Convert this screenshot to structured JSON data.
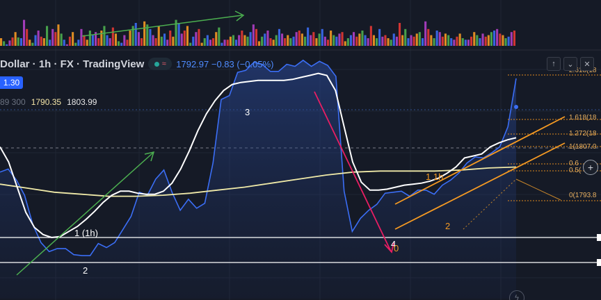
{
  "header": {
    "symbol_label": "Dollar · 1h · FX  · TradingView",
    "price_readout": "1792.97  −0.83 (−0.05%)",
    "last_price_tag": "1.30",
    "ohlc": {
      "prev": "89 300",
      "low": "1790.35",
      "high": "1803.99"
    },
    "toolbar": {
      "up_icon": "arrow-up-icon",
      "collapse_icon": "chevron-down-icon",
      "close_icon": "close-icon"
    },
    "status_icons": [
      "live-dot-icon",
      "wave-icon"
    ]
  },
  "fib_labels": [
    "2.618(18",
    "1.618(18",
    "1.272(18",
    "1(1807.0",
    "0.6",
    "0.5(",
    "0(1793.8"
  ],
  "wave_labels": {
    "w1": "1 (1h)",
    "w2": "2",
    "w3": "3",
    "w4": "4",
    "w0": "0",
    "w11": "1 1h",
    "w2b": "2"
  },
  "zoom_icon": "zoom-in-icon",
  "bottom_icon": "flash-icon",
  "colors": {
    "background": "#151a26",
    "price_line": "#3b6ef5",
    "ma_fast": "#ffffff",
    "ma_slow": "#f0eaa8",
    "channel": "#f59a23",
    "trend_up": "#4caf50",
    "trend_down": "#e91e63",
    "fib": "#e08a1e"
  },
  "chart_data": {
    "type": "line",
    "series": [
      {
        "values": [
          1801.5,
          1801.8,
          1800.7,
          1799.2,
          1796.3,
          1794.5,
          1793.6,
          1793.9,
          1793.9,
          1793.3,
          1793.2,
          1793.2,
          1794.4,
          1794.0,
          1794.5,
          1795.8,
          1797.1,
          1799.5,
          1799.2,
          1800.8,
          1801.7,
          1799.5,
          1797.7,
          1798.8,
          1797.9,
          1798.4,
          1802.4,
          1808.7,
          1809.1,
          1811.4,
          1811.6,
          1812.4,
          1812.2,
          1811.5,
          1811.5,
          1812.2,
          1812.0,
          1812.6,
          1812.0,
          1812.5,
          1812.1,
          1811.0,
          1799.6,
          1795.6,
          1796.9,
          1797.7,
          1798.3,
          1799.4,
          1799.5,
          1799.6,
          1799.1,
          1799.7,
          1799.7,
          1799.3,
          1800.2,
          1800.7,
          1801.4,
          1802.4,
          1803.0,
          1802.9,
          1803.4,
          1804.0,
          1806.0,
          1810.8
        ]
      },
      {
        "values": [
          1804.0,
          1802.5,
          1800.0,
          1797.5,
          1796.0,
          1795.3,
          1795.0,
          1795.1,
          1795.6,
          1796.1,
          1796.8,
          1797.6,
          1798.5,
          1799.2,
          1799.6,
          1799.6,
          1799.4,
          1799.3,
          1799.3,
          1799.6,
          1800.4,
          1801.8,
          1803.6,
          1805.6,
          1807.3,
          1808.6,
          1809.6,
          1810.2,
          1810.4,
          1810.5,
          1810.6,
          1810.6,
          1810.6,
          1810.6,
          1810.7,
          1810.9,
          1811.1,
          1811.3,
          1811.1,
          1809.6,
          1806.0,
          1802.5,
          1800.5,
          1799.7,
          1799.7,
          1799.8,
          1800.0,
          1800.2,
          1800.3,
          1800.4,
          1800.6,
          1800.9,
          1801.4,
          1802.0,
          1802.9,
          1803.1,
          1803.3,
          1804.0,
          1804.4,
          1804.7,
          1804.9
        ]
      },
      {
        "values": [
          1800.3,
          1799.9,
          1799.5,
          1799.3,
          1799.1,
          1799.1,
          1799.2,
          1799.4,
          1799.7,
          1800.0,
          1800.4,
          1800.8,
          1801.2,
          1801.5,
          1801.6,
          1801.6,
          1801.6,
          1801.7,
          1801.9,
          1802.0
        ]
      }
    ],
    "volume": [
      10,
      6,
      2,
      7,
      11,
      18,
      11,
      10,
      34,
      22,
      8,
      4,
      14,
      20,
      12,
      10,
      26,
      8,
      22,
      18,
      28,
      16,
      8,
      2,
      12,
      18,
      4,
      8,
      22,
      14,
      8,
      20,
      14,
      18,
      10,
      20,
      26,
      14,
      10,
      24,
      16,
      6,
      4,
      14,
      8,
      20,
      26,
      30,
      18,
      10,
      32,
      28,
      22,
      14,
      10,
      26,
      12,
      16,
      8,
      20,
      12,
      34,
      30,
      16,
      20,
      26,
      4,
      12,
      18,
      22,
      4,
      10,
      14,
      8,
      10,
      18,
      24,
      4,
      8,
      8,
      12,
      14,
      8,
      14,
      20,
      14,
      12,
      18,
      28,
      22,
      6,
      12,
      16,
      20,
      10,
      8,
      14,
      22,
      16,
      10,
      14,
      10,
      12,
      18,
      20,
      16,
      12,
      24,
      14,
      18,
      10,
      16,
      22,
      12,
      8,
      20,
      14,
      12,
      16,
      18,
      6,
      10,
      14,
      18,
      12,
      16,
      20,
      14,
      10,
      26,
      14,
      10,
      22,
      12,
      14,
      10,
      8,
      16,
      12,
      30,
      14,
      22,
      10,
      14,
      12,
      16,
      18,
      10,
      32,
      22,
      14,
      10,
      20,
      18,
      12,
      16,
      14,
      10,
      8,
      12,
      16,
      10,
      8,
      8,
      12,
      18,
      14,
      10,
      16,
      12,
      14,
      18,
      20,
      22,
      16,
      14,
      10,
      12,
      18,
      20
    ]
  }
}
